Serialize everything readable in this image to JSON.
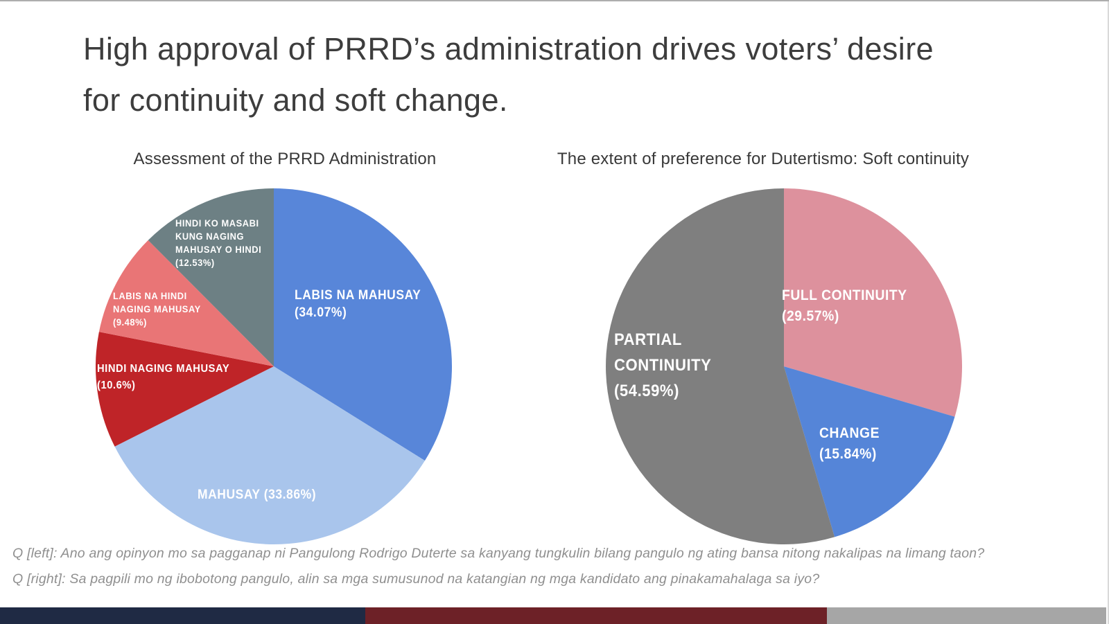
{
  "slide": {
    "title_lines": [
      "High approval of PRRD’s administration drives voters’ desire",
      "for continuity and soft change."
    ],
    "footnotes": [
      "Q [left]: Ano ang opinyon mo sa pagganap ni Pangulong Rodrigo Duterte sa kanyang tungkulin bilang pangulo ng ating bansa nitong nakalipas na limang taon?",
      "Q [right]: Sa pagpili mo ng ibobotong pangulo, alin sa mga sumusunod na katangian ng mga kandidato ang pinakamahalaga sa iyo?"
    ],
    "footer_bar_colors": [
      "#1f2a44",
      "#6d2127",
      "#a6a6a6"
    ]
  },
  "chart_data": [
    {
      "type": "pie",
      "title": "Assessment of the PRRD Administration",
      "categories": [
        "LABIS NA MAHUSAY",
        "MAHUSAY",
        "HINDI NAGING MAHUSAY",
        "LABIS NA HINDI NAGING MAHUSAY",
        "HINDI KO MASABI KUNG NAGING MAHUSAY O HINDI"
      ],
      "values": [
        34.07,
        33.86,
        10.6,
        9.48,
        12.53
      ],
      "unit": "%",
      "colors": [
        "#5886d9",
        "#a9c5ec",
        "#bf2428",
        "#e97576",
        "#6d8084"
      ],
      "slice_ids": [
        "labis-na-mahusay",
        "mahusay",
        "hindi-naging-mahusay",
        "labis-na-hindi-naging-mahusay",
        "hindi-ko-masabi"
      ],
      "label_lines": [
        [
          "LABIS NA MAHUSAY",
          "(34.07%)"
        ],
        [
          "MAHUSAY (33.86%)"
        ],
        [
          "HINDI NAGING MAHUSAY",
          "(10.6%)"
        ],
        [
          "LABIS NA HINDI",
          "NAGING MAHUSAY",
          "(9.48%)"
        ],
        [
          "HINDI KO MASABI",
          "KUNG NAGING",
          "MAHUSAY O HINDI",
          "(12.53%)"
        ]
      ],
      "start_angle": 0,
      "direction": "clockwise",
      "legend": "labels-on-slices"
    },
    {
      "type": "pie",
      "title": "The extent of preference for Dutertismo: Soft continuity",
      "categories": [
        "FULL CONTINUITY",
        "CHANGE",
        "PARTIAL CONTINUITY"
      ],
      "values": [
        29.57,
        15.84,
        54.59
      ],
      "unit": "%",
      "colors": [
        "#dd919d",
        "#5585d8",
        "#7f7f7f"
      ],
      "slice_ids": [
        "full-continuity",
        "change",
        "partial-continuity"
      ],
      "label_lines": [
        [
          "FULL CONTINUITY",
          "(29.57%)"
        ],
        [
          "CHANGE",
          "(15.84%)"
        ],
        [
          "PARTIAL",
          "CONTINUITY",
          "(54.59%)"
        ]
      ],
      "start_angle": 0,
      "direction": "clockwise",
      "legend": "labels-on-slices"
    }
  ]
}
